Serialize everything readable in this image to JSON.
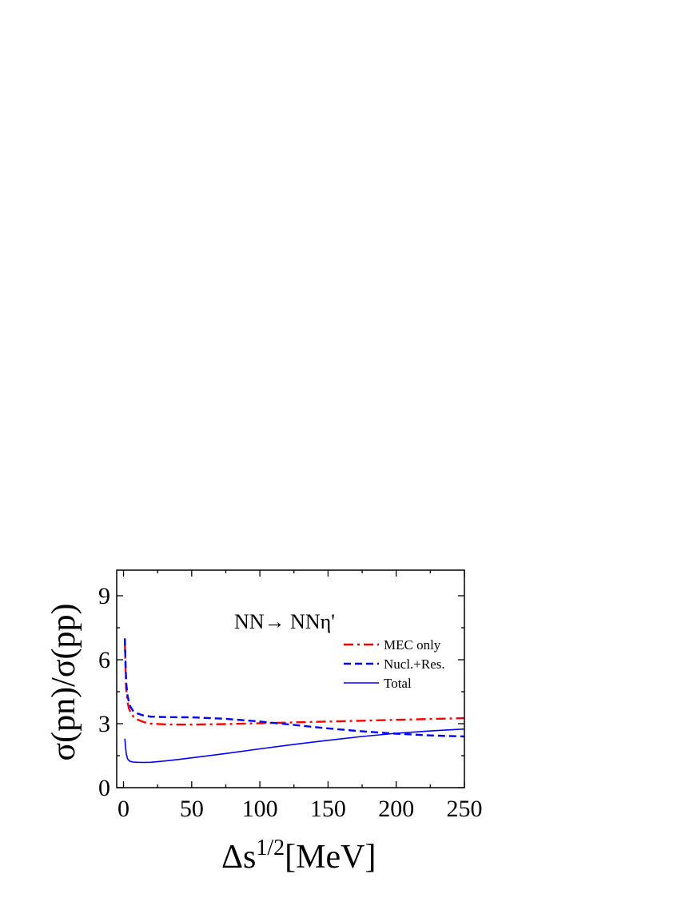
{
  "chart_data": {
    "type": "line",
    "title": "",
    "annotation": "NN→ NNη'",
    "xlabel": "Δs",
    "xlabel_sup": "1/2",
    "xlabel_unit": "[MeV]",
    "ylabel": "σ(pn)/σ(pp)",
    "xlim": [
      -5,
      250
    ],
    "ylim": [
      0,
      10.2
    ],
    "xticks": [
      0,
      50,
      100,
      150,
      200,
      250
    ],
    "yticks": [
      0,
      3,
      6,
      9
    ],
    "legend_position": "top-right",
    "series": [
      {
        "name": "MEC only",
        "color": "#ff0000",
        "dash": "dashdot",
        "x": [
          1,
          1.5,
          2,
          3,
          4,
          5,
          7,
          10,
          15,
          20,
          30,
          40,
          50,
          75,
          100,
          125,
          150,
          175,
          200,
          225,
          250
        ],
        "y": [
          6.8,
          5.5,
          4.6,
          4.0,
          3.7,
          3.55,
          3.35,
          3.2,
          3.07,
          3.0,
          2.97,
          2.96,
          2.96,
          2.98,
          3.02,
          3.06,
          3.1,
          3.14,
          3.18,
          3.22,
          3.26
        ]
      },
      {
        "name": "Nucl.+Res.",
        "color": "#0000ff",
        "dash": "dashed",
        "x": [
          1,
          1.5,
          2,
          3,
          4,
          5,
          7,
          10,
          15,
          20,
          30,
          40,
          50,
          75,
          100,
          125,
          150,
          175,
          200,
          225,
          250
        ],
        "y": [
          7.0,
          5.8,
          4.9,
          4.3,
          4.0,
          3.8,
          3.6,
          3.48,
          3.38,
          3.33,
          3.31,
          3.3,
          3.3,
          3.23,
          3.1,
          2.94,
          2.78,
          2.64,
          2.53,
          2.45,
          2.4
        ]
      },
      {
        "name": "Total",
        "color": "#0000ff",
        "dash": "solid",
        "x": [
          1,
          1.5,
          2,
          3,
          4,
          5,
          7,
          10,
          15,
          20,
          30,
          40,
          50,
          75,
          100,
          125,
          150,
          175,
          200,
          225,
          250
        ],
        "y": [
          2.3,
          1.9,
          1.6,
          1.35,
          1.27,
          1.23,
          1.2,
          1.19,
          1.18,
          1.19,
          1.25,
          1.32,
          1.4,
          1.6,
          1.82,
          2.03,
          2.22,
          2.4,
          2.55,
          2.66,
          2.75
        ]
      }
    ]
  }
}
